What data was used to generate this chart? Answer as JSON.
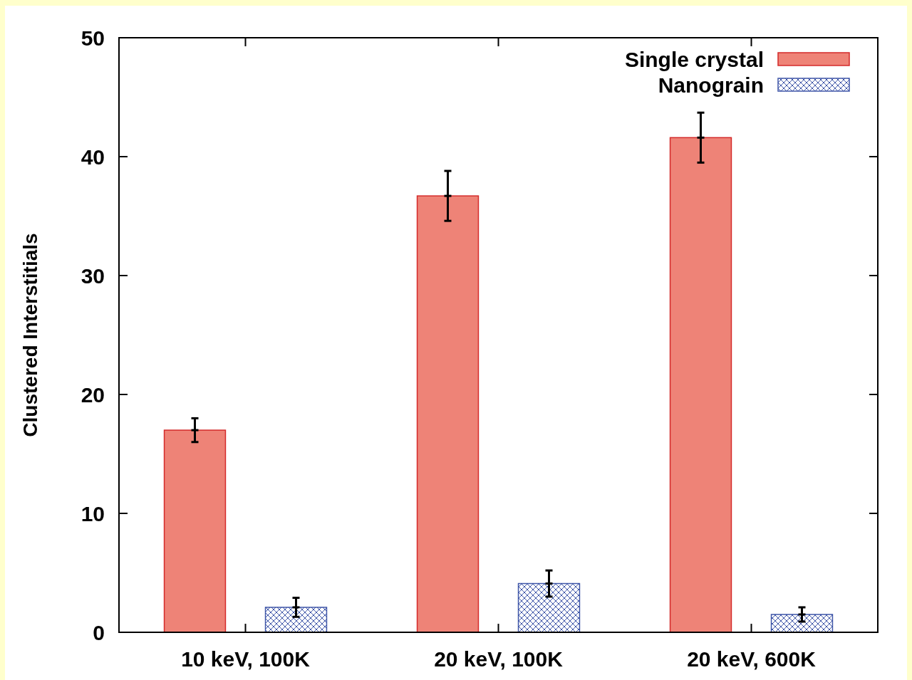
{
  "chart_data": {
    "type": "bar",
    "ylabel": "Clustered Interstitials",
    "categories": [
      "10 keV, 100K",
      "20 keV, 100K",
      "20 keV, 600K"
    ],
    "series": [
      {
        "name": "Single crystal",
        "color": "#ee8377",
        "values": [
          17.0,
          36.7,
          41.6
        ],
        "errors": [
          1.0,
          2.1,
          2.1
        ]
      },
      {
        "name": "Nanograin",
        "color": "#3f56a8",
        "values": [
          2.1,
          4.1,
          1.5
        ],
        "errors": [
          0.8,
          1.1,
          0.6
        ]
      }
    ],
    "ylim": [
      0,
      50
    ],
    "yticks": [
      0,
      10,
      20,
      30,
      40,
      50
    ],
    "grid": false,
    "legend": "top right"
  }
}
